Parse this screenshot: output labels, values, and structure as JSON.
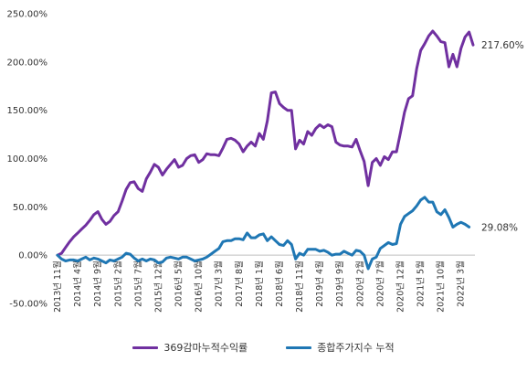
{
  "chart_data": {
    "type": "line",
    "y_ticks": [
      "250.00%",
      "200.00%",
      "150.00%",
      "100.00%",
      "50.00%",
      "0.00%",
      "-50.00%"
    ],
    "ylim": [
      -50,
      250
    ],
    "grid": false,
    "legend_position": "bottom",
    "x_tick_labels": [
      "2013년 11월",
      "2014년 4월",
      "2014년 9월",
      "2015년 2월",
      "2015년 7월",
      "2015년 12월",
      "2016년 5월",
      "2016년 10월",
      "2017년 3월",
      "2017년 8월",
      "2018년 1월",
      "2018년 6월",
      "2018년 11월",
      "2019년 4월",
      "2019년 9월",
      "2020년 2월",
      "2020년 7월",
      "2020년 12월",
      "2021년 5월",
      "2021년 10월",
      "2022년 3월"
    ],
    "x_tick_step": 5,
    "series": [
      {
        "name": "369감마누적수익률",
        "color": "#7030a0",
        "end_label": "217.60%",
        "values": [
          0,
          2,
          8,
          14,
          19,
          23,
          27,
          31,
          36,
          42,
          45,
          37,
          32,
          35,
          41,
          45,
          56,
          68,
          75,
          76,
          69,
          66,
          79,
          86,
          94,
          91,
          83,
          89,
          94,
          99,
          91,
          93,
          100,
          103,
          104,
          96,
          99,
          105,
          104,
          104,
          103,
          111,
          120,
          121,
          119,
          115,
          107,
          113,
          117,
          113,
          126,
          120,
          139,
          168,
          169,
          157,
          153,
          150,
          150,
          110,
          119,
          115,
          128,
          124,
          131,
          135,
          132,
          135,
          133,
          117,
          114,
          113,
          113,
          112,
          120,
          108,
          97,
          72,
          96,
          100,
          93,
          102,
          99,
          107,
          107,
          127,
          148,
          162,
          165,
          193,
          212,
          219,
          227,
          232,
          227,
          221,
          220,
          195,
          208,
          195,
          214,
          226,
          231,
          217.6
        ]
      },
      {
        "name": "종합주가지수 누적",
        "color": "#1f77b4",
        "end_label": "29.08%",
        "values": [
          0,
          -4,
          -6,
          -5,
          -5,
          -6,
          -4,
          -2,
          -5,
          -3,
          -4,
          -6,
          -8,
          -5,
          -6,
          -4,
          -2,
          2,
          1,
          -3,
          -6,
          -4,
          -6,
          -4,
          -5,
          -8,
          -7,
          -3,
          -2,
          -3,
          -4,
          -2,
          -2,
          -4,
          -6,
          -5,
          -4,
          -2,
          1,
          4,
          7,
          14,
          15,
          15,
          17,
          17,
          16,
          23,
          18,
          18,
          21,
          22,
          15,
          19,
          15,
          11,
          10,
          15,
          11,
          -4,
          2,
          0,
          6,
          6,
          6,
          4,
          5,
          3,
          0,
          1,
          1,
          4,
          2,
          0,
          5,
          4,
          0,
          -14,
          -4,
          -2,
          7,
          10,
          13,
          11,
          12,
          32,
          40,
          43,
          46,
          51,
          57,
          60,
          55,
          55,
          45,
          42,
          47,
          39,
          29,
          32,
          34,
          32,
          29.08
        ]
      }
    ]
  }
}
